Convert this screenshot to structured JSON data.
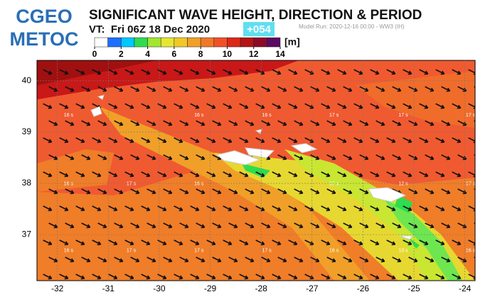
{
  "header": {
    "logo_line1": "CGEO",
    "logo_line2": "METOC",
    "title": "SIGNIFICANT WAVE HEIGHT, DIRECTION & PERIOD",
    "valid_time": "VT:  Fri 06Z 18 Dec 2020",
    "forecast_hour": "+054",
    "model_run": "Model Run: 2020-12-16 00:00 - WW3 (IH)"
  },
  "colorbar": {
    "ticks": [
      0,
      2,
      4,
      6,
      8,
      10,
      12,
      14
    ],
    "range": [
      0,
      14
    ],
    "unit": "[m]",
    "colors": [
      "#ffffff",
      "#1e6eff",
      "#00c8ff",
      "#2edc50",
      "#a0e632",
      "#e6e632",
      "#f0c828",
      "#f0a028",
      "#f07828",
      "#f05028",
      "#dc2818",
      "#b41414",
      "#8c0a28",
      "#5a0a64"
    ]
  },
  "map": {
    "xlim": [
      -32.4,
      -23.8
    ],
    "ylim": [
      36.1,
      40.4
    ],
    "xticks": [
      -32,
      -31,
      -30,
      -29,
      -28,
      -27,
      -26,
      -25,
      -24
    ],
    "yticks": [
      37,
      38,
      39,
      40
    ],
    "period_labels": [
      {
        "lon": -31.78,
        "lat": 39.33,
        "label": "16 s"
      },
      {
        "lon": -29.22,
        "lat": 39.33,
        "label": "16 s"
      },
      {
        "lon": -27.89,
        "lat": 39.33,
        "label": "16 s"
      },
      {
        "lon": -26.57,
        "lat": 39.33,
        "label": "17 s"
      },
      {
        "lon": -25.21,
        "lat": 39.33,
        "label": "17 s"
      },
      {
        "lon": -23.89,
        "lat": 39.33,
        "label": "17 s"
      },
      {
        "lon": -31.78,
        "lat": 37.99,
        "label": "16 s"
      },
      {
        "lon": -30.55,
        "lat": 37.99,
        "label": "17 s"
      },
      {
        "lon": -29.22,
        "lat": 37.99,
        "label": "16 s"
      },
      {
        "lon": -26.57,
        "lat": 37.99,
        "label": "17 s"
      },
      {
        "lon": -25.21,
        "lat": 37.99,
        "label": "12 s"
      },
      {
        "lon": -23.89,
        "lat": 37.99,
        "label": "17 s"
      },
      {
        "lon": -31.78,
        "lat": 36.69,
        "label": "16 s"
      },
      {
        "lon": -30.55,
        "lat": 36.69,
        "label": "17 s"
      },
      {
        "lon": -29.22,
        "lat": 36.69,
        "label": "17 s"
      },
      {
        "lon": -27.89,
        "lat": 36.69,
        "label": "17 s"
      },
      {
        "lon": -26.57,
        "lat": 36.69,
        "label": "16 s"
      },
      {
        "lon": -25.21,
        "lat": 36.69,
        "label": "13 s"
      },
      {
        "lon": -23.89,
        "lat": 36.69,
        "label": "16 s"
      }
    ]
  }
}
